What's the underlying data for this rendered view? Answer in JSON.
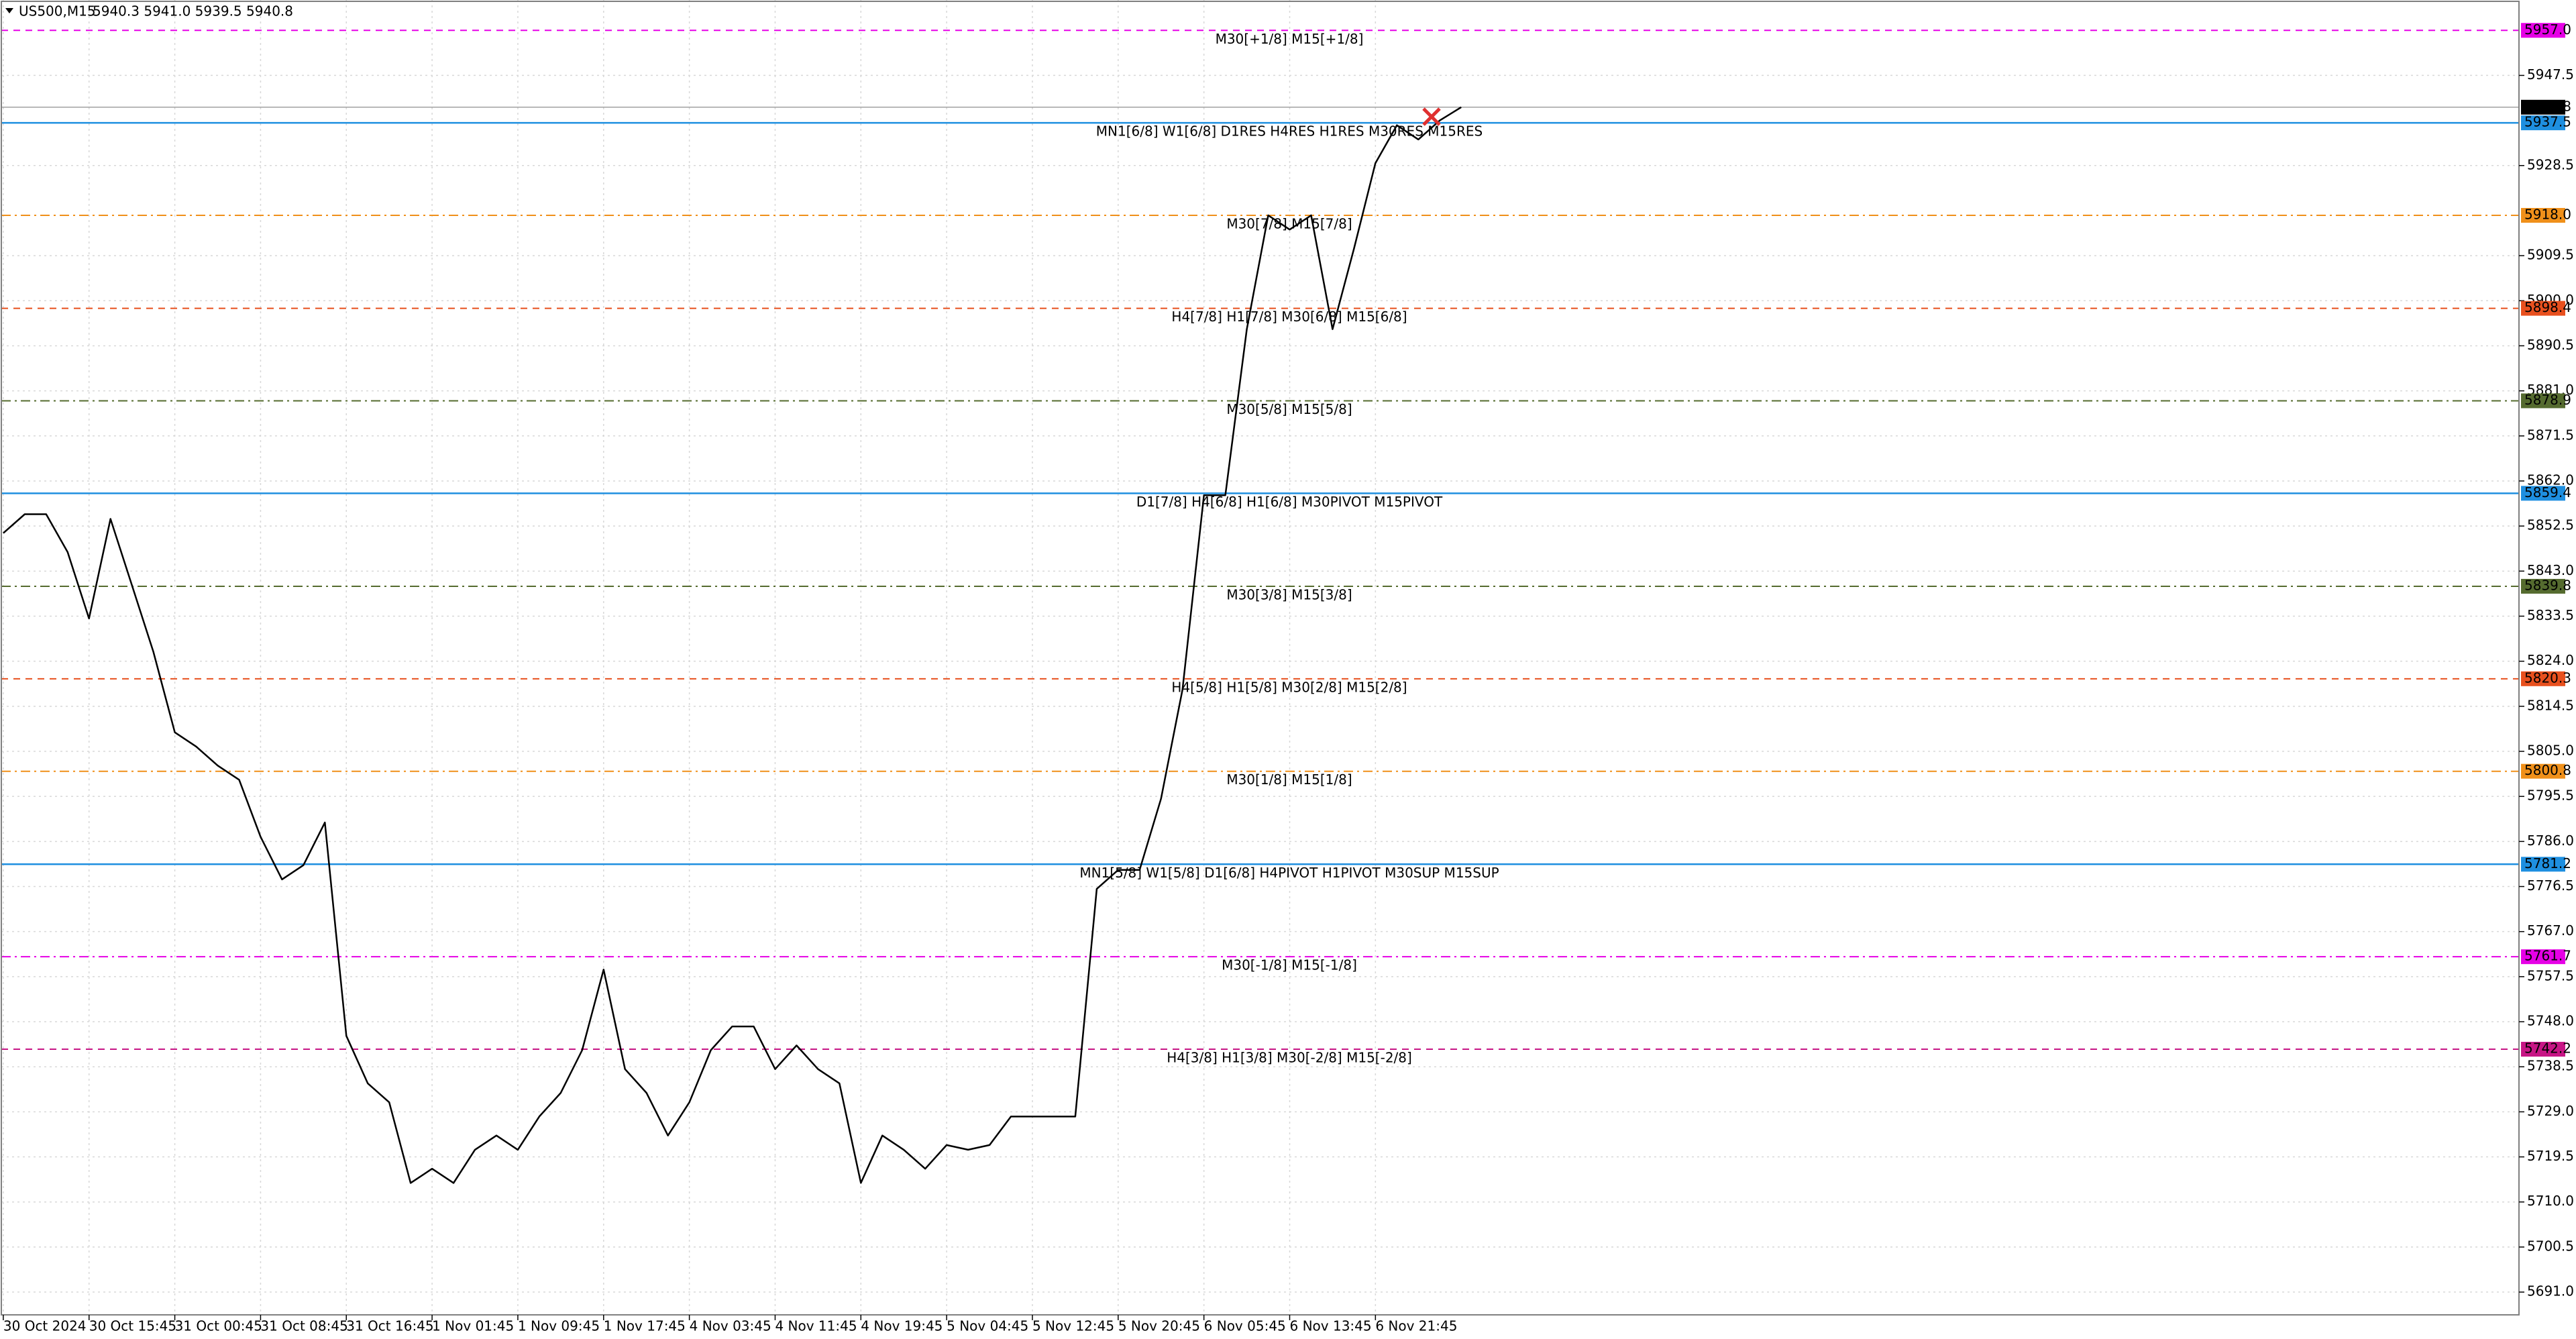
{
  "header": {
    "symbol": "US500,M15",
    "quote": "5940.3 5941.0 5939.5 5940.8"
  },
  "chart_data": {
    "type": "line",
    "categories": [
      "30 Oct 2024",
      null,
      null,
      null,
      "30 Oct 15:45",
      null,
      null,
      null,
      "31 Oct 00:45",
      null,
      null,
      null,
      "31 Oct 08:45",
      null,
      null,
      null,
      "31 Oct 16:45",
      null,
      null,
      null,
      "1 Nov 01:45",
      null,
      null,
      null,
      "1 Nov 09:45",
      null,
      null,
      null,
      "1 Nov 17:45",
      null,
      null,
      null,
      "4 Nov 03:45",
      null,
      null,
      null,
      "4 Nov 11:45",
      null,
      null,
      null,
      "4 Nov 19:45",
      null,
      null,
      null,
      "5 Nov 04:45",
      null,
      null,
      null,
      "5 Nov 12:45",
      null,
      null,
      null,
      "5 Nov 20:45",
      null,
      null,
      null,
      "6 Nov 05:45",
      null,
      null,
      null,
      "6 Nov 13:45",
      null,
      null,
      null,
      "6 Nov 21:45",
      null,
      null,
      null,
      null
    ],
    "series": [
      {
        "color": "#000000",
        "values": [
          5851,
          5855,
          5855,
          5847,
          5833,
          5854,
          5840,
          5826,
          5809,
          5806,
          5802,
          5799,
          5787,
          5778,
          5781,
          5790,
          5745,
          5735,
          5731,
          5714,
          5717,
          5714,
          5721,
          5724,
          5721,
          5728,
          5733,
          5742,
          5759,
          5738,
          5733,
          5724,
          5731,
          5742,
          5747,
          5747,
          5738,
          5743,
          5738,
          5735,
          5714,
          5724,
          5721,
          5717,
          5722,
          5721,
          5722,
          5728,
          5728,
          5728,
          5728,
          5776,
          5780,
          5780,
          5795,
          5818,
          5859,
          5859,
          5894,
          5918,
          5915,
          5918,
          5894,
          5911,
          5929,
          5937,
          5934,
          5938,
          5940.8
        ]
      }
    ],
    "ylim": [
      5686.2,
      5963.4
    ],
    "yticks": [
      5947.5,
      5928.5,
      5909.5,
      {
        "value": 5900,
        "label": "5900.0"
      },
      5890.5,
      {
        "value": 5881,
        "label": "5881.0"
      },
      5871.5,
      {
        "value": 5862,
        "label": "5862.0"
      },
      5852.5,
      {
        "value": 5843,
        "label": "5843.0"
      },
      5833.5,
      {
        "value": 5824,
        "label": "5824.0"
      },
      5814.5,
      {
        "value": 5805,
        "label": "5805.0"
      },
      5795.5,
      {
        "value": 5786,
        "label": "5786.0"
      },
      5776.5,
      {
        "value": 5767,
        "label": "5767.0"
      },
      5757.5,
      {
        "value": 5748,
        "label": "5748.0"
      },
      5738.5,
      {
        "value": 5729,
        "label": "5729.0"
      },
      5719.5,
      {
        "value": 5710,
        "label": "5710.0"
      },
      5700.5,
      {
        "value": 5691,
        "label": "5691.0"
      }
    ],
    "grid": true,
    "current_price": {
      "value": 5940.8,
      "color": "#000000"
    },
    "levels": [
      {
        "value": 5957,
        "label": "5957.0",
        "text": "M30[+1/8] M15[+1/8]",
        "color": "#e600e6",
        "dash": "dash"
      },
      {
        "value": 5937.5,
        "text": "MN1[6/8] W1[6/8] D1RES H4RES H1RES M30RES M15RES",
        "color": "#1e8fe0",
        "dash": "solid"
      },
      {
        "value": 5918,
        "label": "5918.0",
        "text": "M30[7/8] M15[7/8]",
        "color": "#f0901a",
        "dash": "dashdot"
      },
      {
        "value": 5898.4,
        "text": "H4[7/8] H1[7/8] M30[6/8] M15[6/8]",
        "color": "#e8501e",
        "dash": "dash"
      },
      {
        "value": 5878.9,
        "text": "M30[5/8] M15[5/8]",
        "color": "#556b2f",
        "dash": "dashdot"
      },
      {
        "value": 5859.4,
        "text": "D1[7/8] H4[6/8] H1[6/8] M30PIVOT M15PIVOT",
        "color": "#1e8fe0",
        "dash": "solid"
      },
      {
        "value": 5839.8,
        "text": "M30[3/8] M15[3/8]",
        "color": "#556b2f",
        "dash": "dashdot"
      },
      {
        "value": 5820.3,
        "text": "H4[5/8] H1[5/8] M30[2/8] M15[2/8]",
        "color": "#e8501e",
        "dash": "dash"
      },
      {
        "value": 5800.8,
        "text": "M30[1/8] M15[1/8]",
        "color": "#f0901a",
        "dash": "dashdot"
      },
      {
        "value": 5781.2,
        "text": "MN1[5/8] W1[5/8] D1[6/8] H4PIVOT H1PIVOT M30SUP M15SUP",
        "color": "#1e8fe0",
        "dash": "solid"
      },
      {
        "value": 5761.7,
        "text": "M30[-1/8] M15[-1/8]",
        "color": "#e600e6",
        "dash": "dashdot"
      },
      {
        "value": 5742.2,
        "text": "H4[3/8] H1[3/8] M30[-2/8] M15[-2/8]",
        "color": "#c71585",
        "dash": "dash"
      }
    ]
  }
}
